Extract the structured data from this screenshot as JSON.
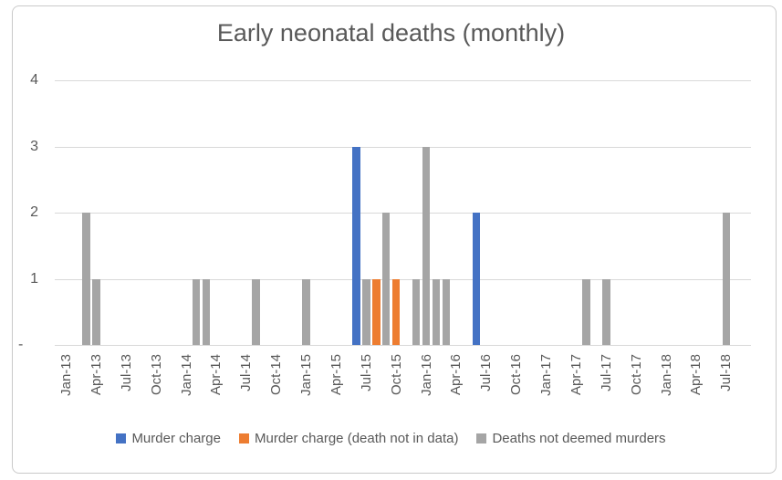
{
  "chart_data": {
    "type": "bar",
    "title": "Early neonatal deaths (monthly)",
    "x_axis": {
      "unit": "month",
      "start": "Jan-13",
      "end": "Jul-18",
      "tick_labels": [
        "Jan-13",
        "Apr-13",
        "Jul-13",
        "Oct-13",
        "Jan-14",
        "Apr-14",
        "Jul-14",
        "Oct-14",
        "Jan-15",
        "Apr-15",
        "Jul-15",
        "Oct-15",
        "Jan-16",
        "Apr-16",
        "Jul-16",
        "Oct-16",
        "Jan-17",
        "Apr-17",
        "Jul-17",
        "Oct-17",
        "Jan-18",
        "Apr-18",
        "Jul-18"
      ]
    },
    "y_axis": {
      "min": 0,
      "max": 4,
      "ticks": [
        {
          "label": "4",
          "value": 4
        },
        {
          "label": "3",
          "value": 3
        },
        {
          "label": "2",
          "value": 2
        },
        {
          "label": "1",
          "value": 1
        },
        {
          "label": "-",
          "value": 0
        }
      ],
      "gridlines": true
    },
    "legend_position": "bottom",
    "series": [
      {
        "name": "Murder charge",
        "color": "#4472C4",
        "points": [
          {
            "x": "Jun-15",
            "y": 3
          },
          {
            "x": "Jun-16",
            "y": 2
          }
        ]
      },
      {
        "name": "Murder charge (death not in data)",
        "color": "#ED7D31",
        "points": [
          {
            "x": "Aug-15",
            "y": 1
          },
          {
            "x": "Oct-15",
            "y": 1
          }
        ]
      },
      {
        "name": "Deaths not deemed murders",
        "color": "#A5A5A5",
        "points": [
          {
            "x": "Mar-13",
            "y": 2
          },
          {
            "x": "Apr-13",
            "y": 1
          },
          {
            "x": "Feb-14",
            "y": 1
          },
          {
            "x": "Mar-14",
            "y": 1
          },
          {
            "x": "Aug-14",
            "y": 1
          },
          {
            "x": "Jan-15",
            "y": 1
          },
          {
            "x": "Jul-15",
            "y": 1
          },
          {
            "x": "Sep-15",
            "y": 2
          },
          {
            "x": "Dec-15",
            "y": 1
          },
          {
            "x": "Jan-16",
            "y": 3
          },
          {
            "x": "Feb-16",
            "y": 1
          },
          {
            "x": "Mar-16",
            "y": 1
          },
          {
            "x": "May-17",
            "y": 1
          },
          {
            "x": "Jul-17",
            "y": 1
          },
          {
            "x": "Jul-18",
            "y": 2
          }
        ]
      }
    ],
    "colors": {
      "grid": "#d9d9d9",
      "axis_text": "#595959",
      "title_text": "#595959",
      "frame_border": "#c9c9c9"
    }
  }
}
